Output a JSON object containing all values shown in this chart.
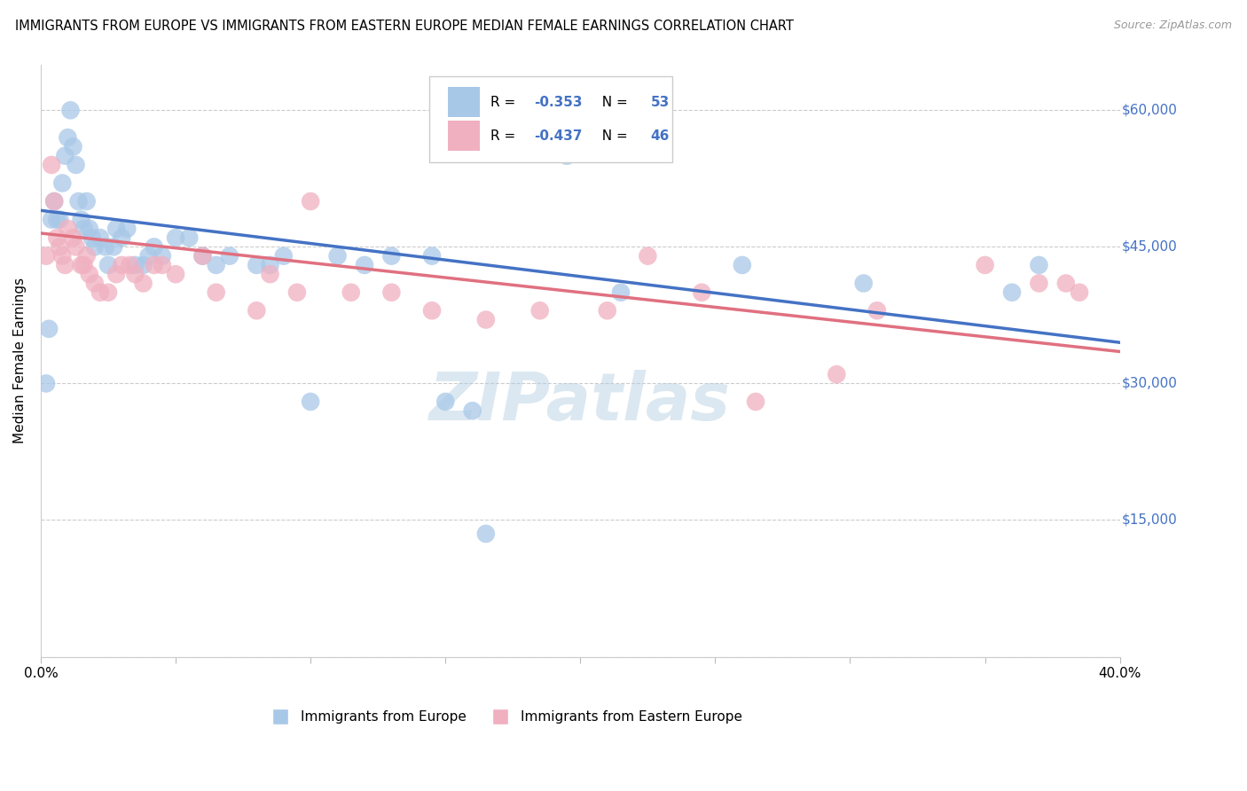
{
  "title": "IMMIGRANTS FROM EUROPE VS IMMIGRANTS FROM EASTERN EUROPE MEDIAN FEMALE EARNINGS CORRELATION CHART",
  "source": "Source: ZipAtlas.com",
  "ylabel": "Median Female Earnings",
  "x_min": 0.0,
  "x_max": 0.4,
  "y_min": 0,
  "y_max": 65000,
  "y_ticks": [
    0,
    15000,
    30000,
    45000,
    60000
  ],
  "x_ticks": [
    0.0,
    0.05,
    0.1,
    0.15,
    0.2,
    0.25,
    0.3,
    0.35,
    0.4
  ],
  "blue_R": -0.353,
  "blue_N": 53,
  "pink_R": -0.437,
  "pink_N": 46,
  "blue_label": "Immigrants from Europe",
  "pink_label": "Immigrants from Eastern Europe",
  "blue_color": "#a8c8e8",
  "pink_color": "#f0b0c0",
  "blue_line_color": "#4472c4",
  "pink_line_color": "#e07080",
  "watermark": "ZIPatlas",
  "blue_scatter_x": [
    0.002,
    0.003,
    0.004,
    0.005,
    0.006,
    0.007,
    0.008,
    0.009,
    0.01,
    0.011,
    0.012,
    0.013,
    0.014,
    0.015,
    0.016,
    0.017,
    0.018,
    0.019,
    0.02,
    0.022,
    0.024,
    0.025,
    0.027,
    0.028,
    0.03,
    0.032,
    0.035,
    0.038,
    0.04,
    0.042,
    0.045,
    0.05,
    0.055,
    0.06,
    0.065,
    0.07,
    0.08,
    0.085,
    0.09,
    0.1,
    0.11,
    0.12,
    0.13,
    0.145,
    0.15,
    0.16,
    0.165,
    0.195,
    0.215,
    0.26,
    0.305,
    0.36,
    0.37
  ],
  "blue_scatter_y": [
    30000,
    36000,
    48000,
    50000,
    48000,
    48000,
    52000,
    55000,
    57000,
    60000,
    56000,
    54000,
    50000,
    48000,
    47000,
    50000,
    47000,
    46000,
    45000,
    46000,
    45000,
    43000,
    45000,
    47000,
    46000,
    47000,
    43000,
    43000,
    44000,
    45000,
    44000,
    46000,
    46000,
    44000,
    43000,
    44000,
    43000,
    43000,
    44000,
    28000,
    44000,
    43000,
    44000,
    44000,
    28000,
    27000,
    13500,
    55000,
    40000,
    43000,
    41000,
    40000,
    43000
  ],
  "pink_scatter_x": [
    0.002,
    0.004,
    0.005,
    0.006,
    0.007,
    0.008,
    0.009,
    0.01,
    0.012,
    0.013,
    0.015,
    0.016,
    0.017,
    0.018,
    0.02,
    0.022,
    0.025,
    0.028,
    0.03,
    0.033,
    0.035,
    0.038,
    0.042,
    0.045,
    0.05,
    0.06,
    0.065,
    0.08,
    0.085,
    0.095,
    0.1,
    0.115,
    0.13,
    0.145,
    0.165,
    0.185,
    0.21,
    0.225,
    0.245,
    0.265,
    0.295,
    0.31,
    0.35,
    0.37,
    0.38,
    0.385
  ],
  "pink_scatter_y": [
    44000,
    54000,
    50000,
    46000,
    45000,
    44000,
    43000,
    47000,
    46000,
    45000,
    43000,
    43000,
    44000,
    42000,
    41000,
    40000,
    40000,
    42000,
    43000,
    43000,
    42000,
    41000,
    43000,
    43000,
    42000,
    44000,
    40000,
    38000,
    42000,
    40000,
    50000,
    40000,
    40000,
    38000,
    37000,
    38000,
    38000,
    44000,
    40000,
    28000,
    31000,
    38000,
    43000,
    41000,
    41000,
    40000
  ],
  "blue_line_x0": 0.0,
  "blue_line_y0": 49000,
  "blue_line_x1": 0.4,
  "blue_line_y1": 34500,
  "pink_line_x0": 0.0,
  "pink_line_y0": 46500,
  "pink_line_x1": 0.4,
  "pink_line_y1": 33500
}
